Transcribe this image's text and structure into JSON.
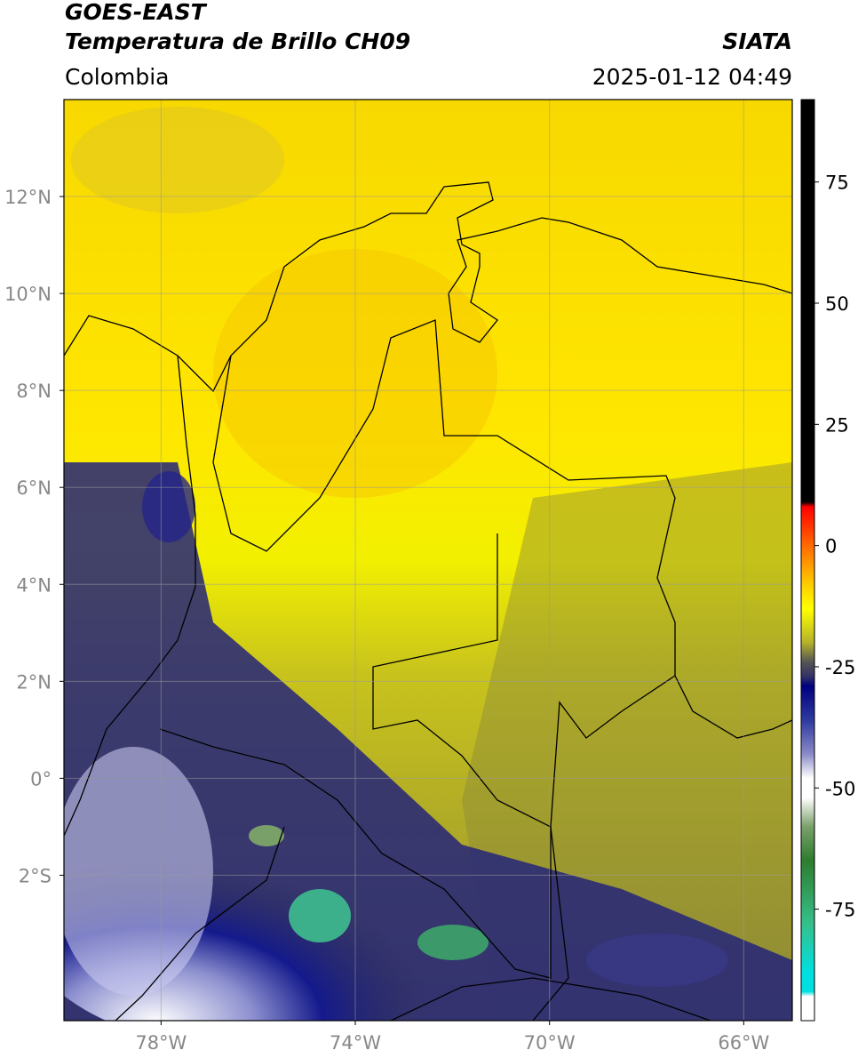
{
  "header": {
    "title": "GOES-EAST",
    "subtitle": "Temperatura de Brillo CH09",
    "source": "SIATA",
    "region": "Colombia",
    "datetime": "2025-01-12 04:49"
  },
  "map": {
    "xlim": [
      -80,
      -65
    ],
    "ylim": [
      -5,
      14
    ],
    "xticks": [
      {
        "value": -78,
        "label": "78°W"
      },
      {
        "value": -74,
        "label": "74°W"
      },
      {
        "value": -70,
        "label": "70°W"
      },
      {
        "value": -66,
        "label": "66°W"
      }
    ],
    "yticks": [
      {
        "value": 12,
        "label": "12°N"
      },
      {
        "value": 10,
        "label": "10°N"
      },
      {
        "value": 8,
        "label": "8°N"
      },
      {
        "value": 6,
        "label": "6°N"
      },
      {
        "value": 4,
        "label": "4°N"
      },
      {
        "value": 2,
        "label": "2°N"
      },
      {
        "value": 0,
        "label": "0°"
      },
      {
        "value": -2,
        "label": "2°S"
      }
    ],
    "grid": true
  },
  "colorbar": {
    "lim": [
      -98,
      92
    ],
    "ticks": [
      75,
      50,
      25,
      0,
      -25,
      -50,
      -75
    ],
    "stops": [
      {
        "value": 92,
        "color": "#000000"
      },
      {
        "value": 9,
        "color": "#000000"
      },
      {
        "value": 8,
        "color": "#ff0000"
      },
      {
        "value": 0,
        "color": "#ff6a00"
      },
      {
        "value": -8,
        "color": "#ffcc00"
      },
      {
        "value": -13,
        "color": "#ffff00"
      },
      {
        "value": -20,
        "color": "#b5b22a"
      },
      {
        "value": -24,
        "color": "#555555"
      },
      {
        "value": -27,
        "color": "#333366"
      },
      {
        "value": -29,
        "color": "#000080"
      },
      {
        "value": -36,
        "color": "#2e3a9e"
      },
      {
        "value": -43,
        "color": "#8a8ac8"
      },
      {
        "value": -48,
        "color": "#ffffff"
      },
      {
        "value": -52,
        "color": "#ffffff"
      },
      {
        "value": -58,
        "color": "#7aa06a"
      },
      {
        "value": -65,
        "color": "#2e7d2e"
      },
      {
        "value": -78,
        "color": "#35c08a"
      },
      {
        "value": -88,
        "color": "#00e0e0"
      },
      {
        "value": -92,
        "color": "#00e0e0"
      },
      {
        "value": -93,
        "color": "#ffffff"
      },
      {
        "value": -98,
        "color": "#ffffff"
      }
    ]
  }
}
